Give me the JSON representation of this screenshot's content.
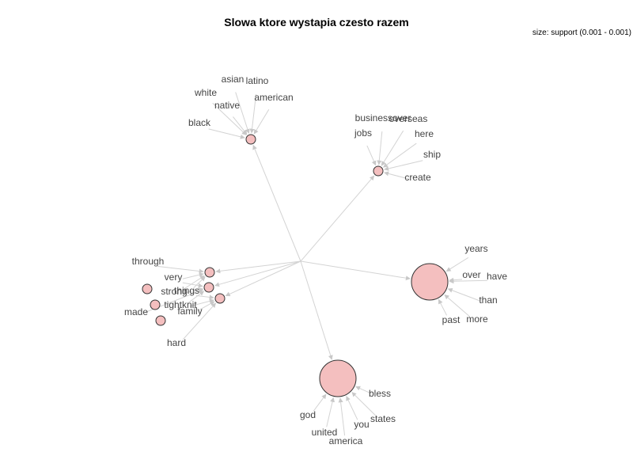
{
  "title": "Slowa ktore wystapia czesto razem",
  "size_legend": "size: support (0.001 - 0.001)",
  "colors": {
    "node_fill": "#f4bfbf",
    "node_stroke": "#333333",
    "edge": "#d3d3d3",
    "label": "#444444"
  },
  "words": [
    "asian",
    "latino",
    "white",
    "native",
    "american",
    "black",
    "businessover",
    "overseas",
    "jobs",
    "here",
    "ship",
    "create",
    "years",
    "over",
    "have",
    "than",
    "past",
    "more",
    "bless",
    "states",
    "you",
    "god",
    "united",
    "america",
    "through",
    "very",
    "strong",
    "things",
    "tightknit",
    "made",
    "family",
    "hard"
  ],
  "rules": [
    {
      "name": "rule-1",
      "lhs": [
        "asian",
        "latino",
        "white",
        "native",
        "american",
        "black"
      ],
      "rhs": "hub"
    },
    {
      "name": "rule-2",
      "lhs": [
        "businessover",
        "overseas",
        "jobs",
        "here",
        "ship",
        "create"
      ],
      "rhs": "hub"
    },
    {
      "name": "rule-3",
      "lhs": [
        "years",
        "over",
        "have",
        "than",
        "past",
        "more"
      ],
      "rhs": "hub"
    },
    {
      "name": "rule-4",
      "lhs": [
        "bless",
        "states",
        "you",
        "god",
        "united",
        "america"
      ],
      "rhs": "hub"
    },
    {
      "name": "rule-5a",
      "lhs": [
        "through",
        "very",
        "strong",
        "things"
      ],
      "rhs": "hub"
    },
    {
      "name": "rule-5b",
      "lhs": [
        "very",
        "strong",
        "tightknit",
        "made"
      ],
      "rhs": "hub"
    },
    {
      "name": "rule-5c",
      "lhs": [
        "things",
        "tightknit",
        "family",
        "hard"
      ],
      "rhs": "hub"
    }
  ]
}
